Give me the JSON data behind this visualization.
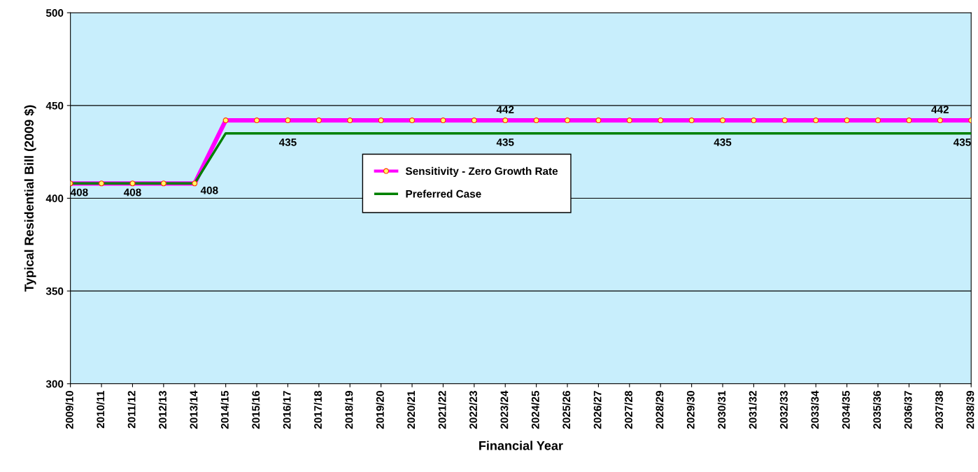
{
  "chart_data": {
    "type": "line",
    "xlabel": "Financial Year",
    "ylabel": "Typical Residential Bill (2009 $)",
    "categories": [
      "2009/10",
      "2010/11",
      "2011/12",
      "2012/13",
      "2013/14",
      "2014/15",
      "2015/16",
      "2016/17",
      "2017/18",
      "2018/19",
      "2019/20",
      "2020/21",
      "2021/22",
      "2022/23",
      "2023/24",
      "2024/25",
      "2025/26",
      "2026/27",
      "2027/28",
      "2028/29",
      "2029/30",
      "2030/31",
      "2031/32",
      "2032/33",
      "2033/34",
      "2034/35",
      "2035/36",
      "2036/37",
      "2037/38",
      "2038/39"
    ],
    "series": [
      {
        "name": "Sensitivity - Zero Growth Rate",
        "color": "#ff00ff",
        "marker": "circle",
        "values": [
          408,
          408,
          408,
          408,
          408,
          442,
          442,
          442,
          442,
          442,
          442,
          442,
          442,
          442,
          442,
          442,
          442,
          442,
          442,
          442,
          442,
          442,
          442,
          442,
          442,
          442,
          442,
          442,
          442,
          442
        ],
        "value_labels": [
          null,
          null,
          null,
          null,
          null,
          null,
          null,
          null,
          null,
          null,
          null,
          null,
          null,
          null,
          "442",
          null,
          null,
          null,
          null,
          null,
          null,
          null,
          null,
          null,
          null,
          null,
          null,
          null,
          "442",
          null
        ]
      },
      {
        "name": "Preferred Case",
        "color": "#008000",
        "marker": "none",
        "values": [
          408,
          408,
          408,
          408,
          408,
          435,
          435,
          435,
          435,
          435,
          435,
          435,
          435,
          435,
          435,
          435,
          435,
          435,
          435,
          435,
          435,
          435,
          435,
          435,
          435,
          435,
          435,
          435,
          435,
          435
        ],
        "value_labels": [
          "408",
          null,
          "408",
          null,
          "408",
          null,
          null,
          "435",
          null,
          null,
          null,
          null,
          null,
          null,
          "435",
          null,
          null,
          null,
          null,
          null,
          null,
          "435",
          null,
          null,
          null,
          null,
          null,
          null,
          null,
          "435"
        ]
      }
    ],
    "ylim": [
      300,
      500
    ],
    "yticks": [
      300,
      350,
      400,
      450,
      500
    ],
    "grid": "y",
    "legend": "center"
  }
}
